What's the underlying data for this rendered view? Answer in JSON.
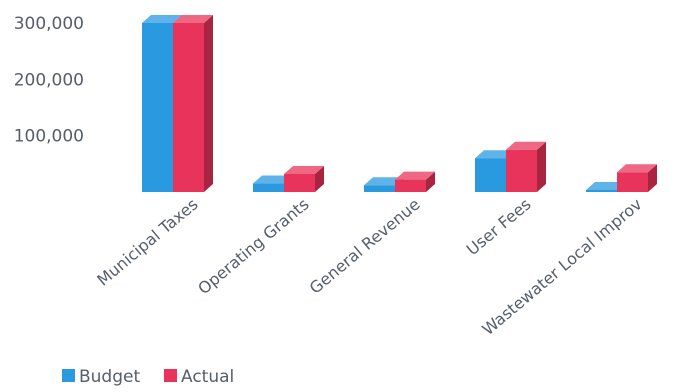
{
  "chart_data": {
    "type": "bar",
    "title": "",
    "xlabel": "",
    "ylabel": "",
    "categories": [
      "Municipal Taxes",
      "Operating Grants",
      "General Revenue",
      "User Fees",
      "Wastewater Local Improv"
    ],
    "series": [
      {
        "name": "Budget",
        "values": [
          300000,
          15000,
          12000,
          60000,
          2000
        ]
      },
      {
        "name": "Actual",
        "values": [
          300000,
          32000,
          22000,
          75000,
          35000
        ]
      }
    ],
    "ylim": [
      0,
      300000
    ],
    "yticks": [
      100000,
      200000,
      300000
    ],
    "ytick_labels": [
      "100,000",
      "200,000",
      "300,000"
    ],
    "legend_position": "bottom-left",
    "style": "3d-bars",
    "grid": false
  },
  "colors": {
    "Budget": "#2a9ae0",
    "Actual": "#e8345a"
  }
}
